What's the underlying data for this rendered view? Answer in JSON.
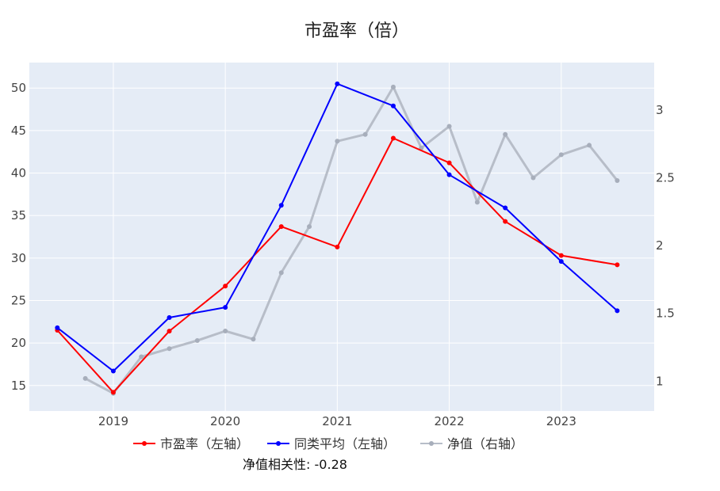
{
  "chart_data": {
    "type": "line",
    "title": "市盈率（倍）",
    "xlim": [
      2018.25,
      2023.83
    ],
    "ylim_left": [
      12,
      53
    ],
    "ylim_right": [
      0.78,
      3.35
    ],
    "x_ticks": [
      2019,
      2020,
      2021,
      2022,
      2023
    ],
    "x_tick_labels": [
      "2019",
      "2020",
      "2021",
      "2022",
      "2023"
    ],
    "y_left_ticks": [
      15,
      20,
      25,
      30,
      35,
      40,
      45,
      50
    ],
    "y_left_tick_labels": [
      "15",
      "20",
      "25",
      "30",
      "35",
      "40",
      "45",
      "50"
    ],
    "y_right_ticks": [
      1,
      1.5,
      2,
      2.5,
      3
    ],
    "y_right_tick_labels": [
      "1",
      "1.5",
      "2",
      "2.5",
      "3"
    ],
    "grid": true,
    "legend_position": "bottom",
    "annotation": "净值相关性: -0.28",
    "series": [
      {
        "name": "市盈率（左轴）",
        "axis": "left",
        "color": "#ff0000",
        "x": [
          2018.5,
          2019.0,
          2019.5,
          2020.0,
          2020.5,
          2021.0,
          2021.5,
          2022.0,
          2022.5,
          2023.0,
          2023.5
        ],
        "values": [
          21.5,
          14.2,
          21.4,
          26.7,
          33.7,
          31.3,
          44.1,
          41.2,
          34.3,
          30.3,
          29.2
        ]
      },
      {
        "name": "同类平均（左轴）",
        "axis": "left",
        "color": "#0000ff",
        "x": [
          2018.5,
          2019.0,
          2019.5,
          2020.0,
          2020.5,
          2021.0,
          2021.5,
          2022.0,
          2022.5,
          2023.0,
          2023.5
        ],
        "values": [
          21.8,
          16.7,
          23.0,
          24.2,
          36.2,
          50.5,
          47.9,
          39.8,
          35.9,
          29.6,
          23.8
        ]
      },
      {
        "name": "净值（右轴）",
        "axis": "right",
        "color": "#b7bdc8",
        "x": [
          2018.75,
          2019.0,
          2019.25,
          2019.5,
          2019.75,
          2020.0,
          2020.25,
          2020.5,
          2020.75,
          2021.0,
          2021.25,
          2021.5,
          2021.75,
          2022.0,
          2022.25,
          2022.5,
          2022.75,
          2023.0,
          2023.25,
          2023.5
        ],
        "values": [
          1.02,
          0.91,
          1.18,
          1.24,
          1.3,
          1.37,
          1.31,
          1.8,
          2.14,
          2.77,
          2.82,
          3.17,
          2.72,
          2.88,
          2.32,
          2.82,
          2.5,
          2.67,
          2.74,
          2.48
        ]
      }
    ]
  }
}
